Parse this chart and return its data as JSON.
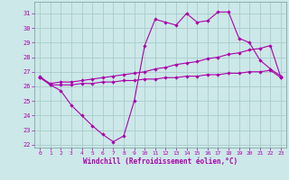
{
  "xlabel": "Windchill (Refroidissement éolien,°C)",
  "bg_color": "#cce8e8",
  "grid_color": "#aacccc",
  "line_color": "#aa00aa",
  "x_ticks": [
    0,
    1,
    2,
    3,
    4,
    5,
    6,
    7,
    8,
    9,
    10,
    11,
    12,
    13,
    14,
    15,
    16,
    17,
    18,
    19,
    20,
    21,
    22,
    23
  ],
  "y_ticks": [
    22,
    23,
    24,
    25,
    26,
    27,
    28,
    29,
    30,
    31
  ],
  "ylim": [
    21.8,
    31.8
  ],
  "xlim": [
    -0.5,
    23.5
  ],
  "line1_x": [
    0,
    1,
    2,
    3,
    4,
    5,
    6,
    7,
    8,
    9,
    10,
    11,
    12,
    13,
    14,
    15,
    16,
    17,
    18,
    19,
    20,
    21,
    22,
    23
  ],
  "line1_y": [
    26.7,
    26.1,
    25.7,
    24.7,
    24.0,
    23.3,
    22.7,
    22.2,
    22.6,
    25.0,
    28.8,
    30.6,
    30.4,
    30.2,
    31.0,
    30.4,
    30.5,
    31.1,
    31.1,
    29.3,
    29.0,
    27.8,
    27.2,
    26.7
  ],
  "line2_x": [
    0,
    1,
    2,
    3,
    4,
    5,
    6,
    7,
    8,
    9,
    10,
    11,
    12,
    13,
    14,
    15,
    16,
    17,
    18,
    19,
    20,
    21,
    22,
    23
  ],
  "line2_y": [
    26.6,
    26.2,
    26.3,
    26.3,
    26.4,
    26.5,
    26.6,
    26.7,
    26.8,
    26.9,
    27.0,
    27.2,
    27.3,
    27.5,
    27.6,
    27.7,
    27.9,
    28.0,
    28.2,
    28.3,
    28.5,
    28.6,
    28.8,
    26.6
  ],
  "line3_x": [
    0,
    1,
    2,
    3,
    4,
    5,
    6,
    7,
    8,
    9,
    10,
    11,
    12,
    13,
    14,
    15,
    16,
    17,
    18,
    19,
    20,
    21,
    22,
    23
  ],
  "line3_y": [
    26.6,
    26.1,
    26.1,
    26.1,
    26.2,
    26.2,
    26.3,
    26.3,
    26.4,
    26.4,
    26.5,
    26.5,
    26.6,
    26.6,
    26.7,
    26.7,
    26.8,
    26.8,
    26.9,
    26.9,
    27.0,
    27.0,
    27.1,
    26.6
  ]
}
